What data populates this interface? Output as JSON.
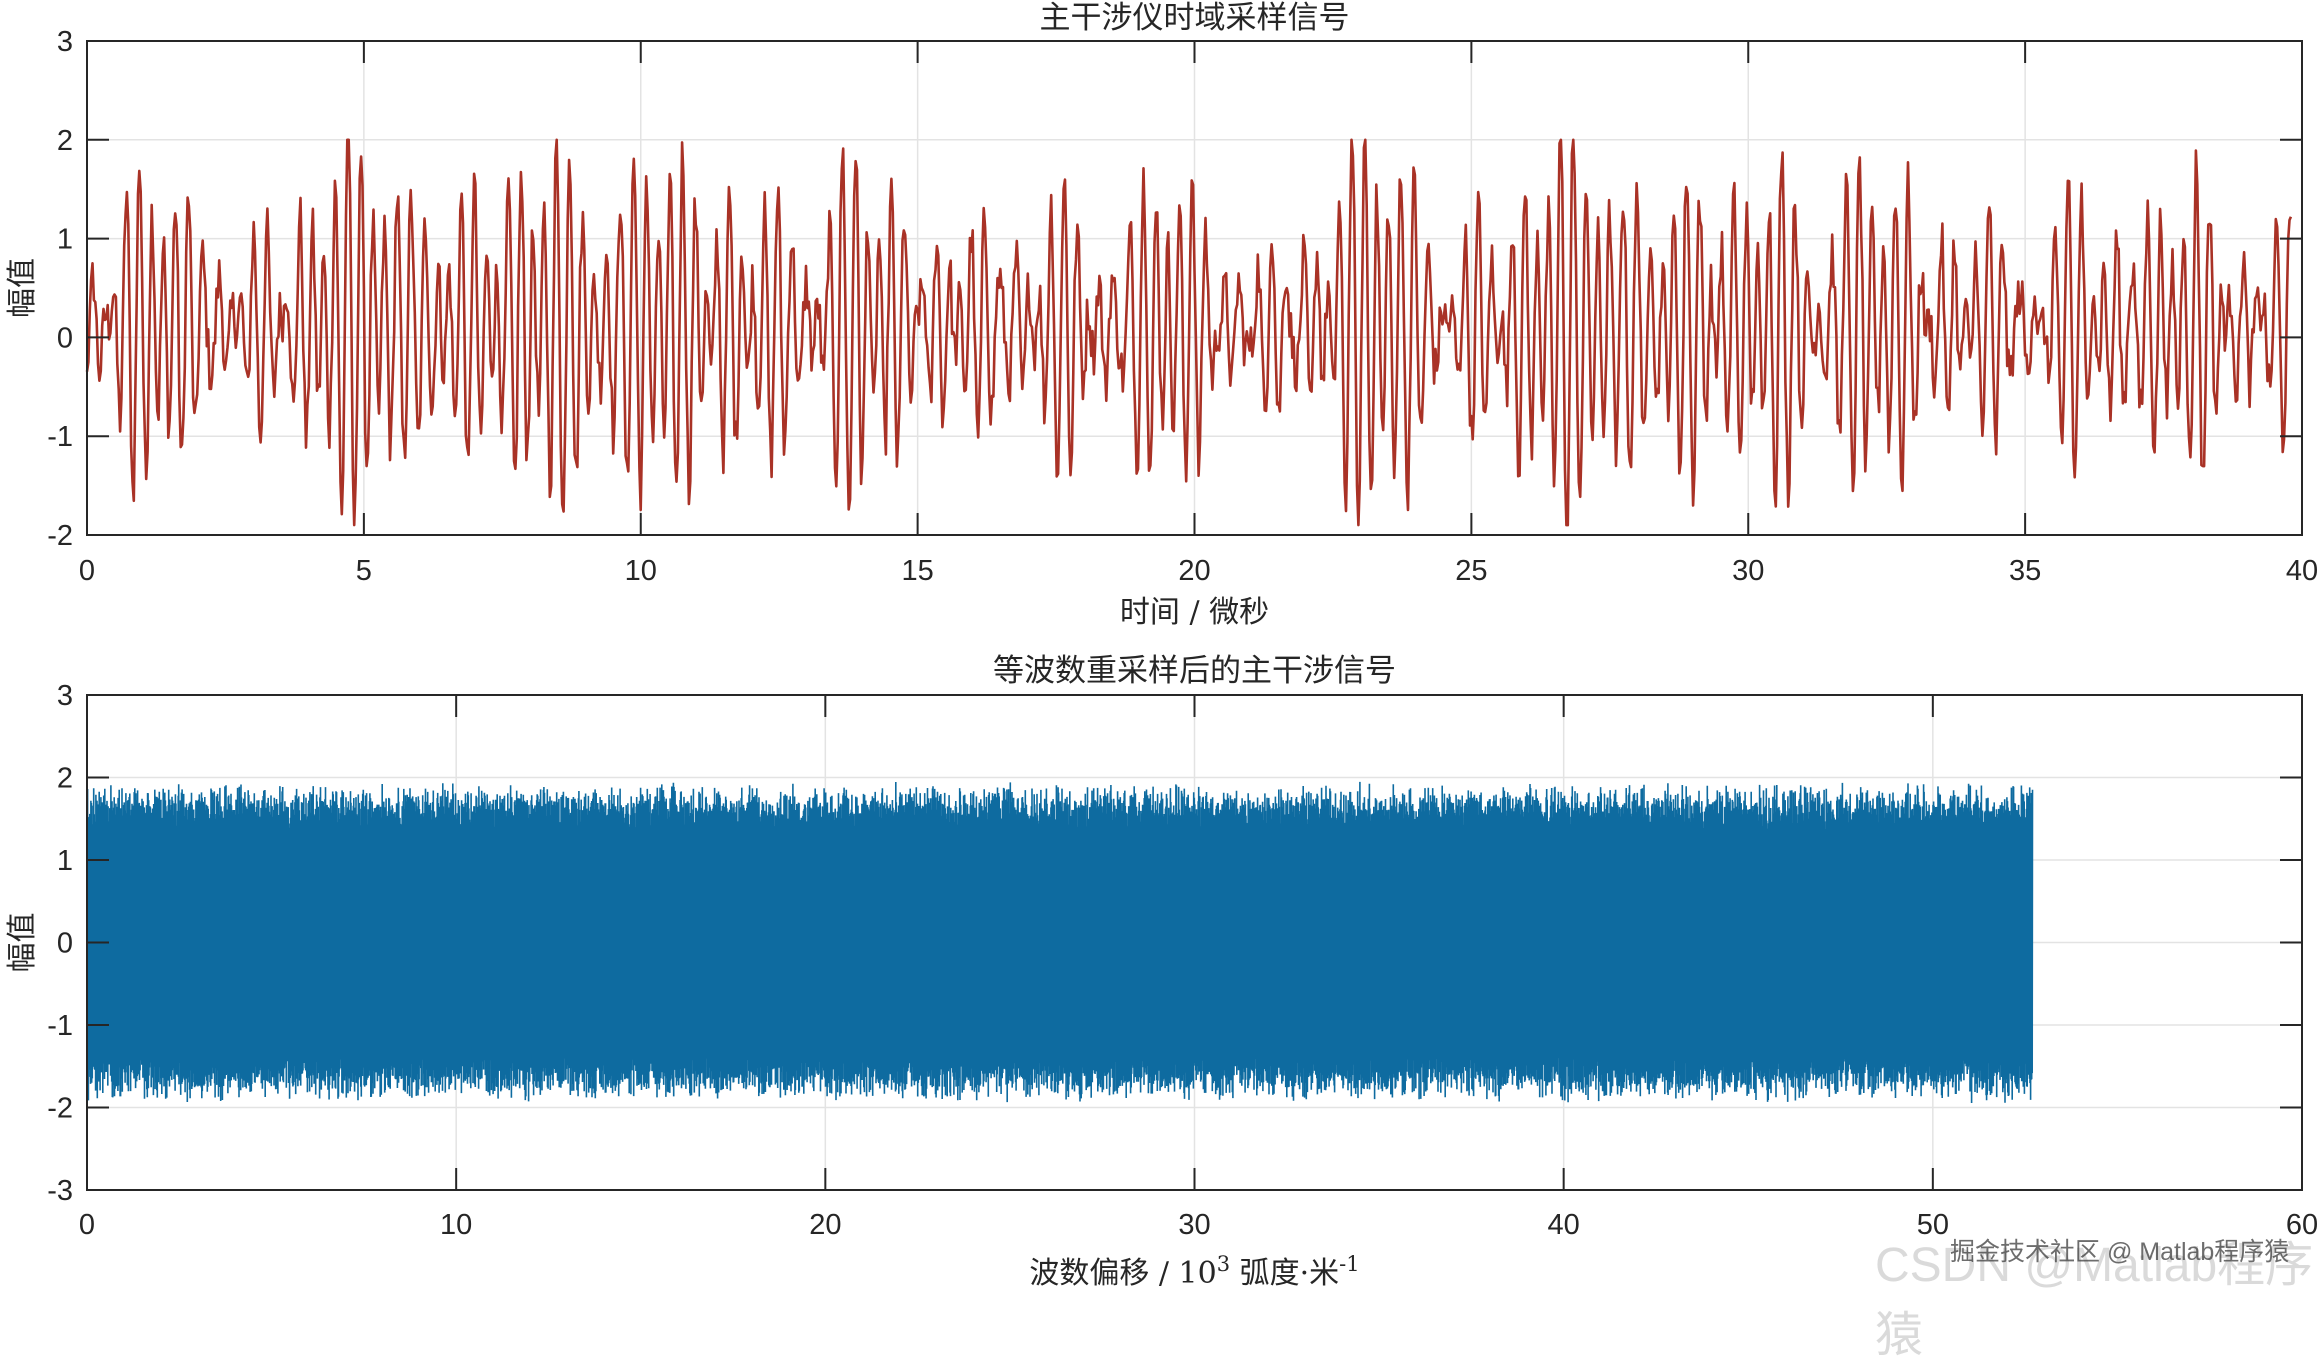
{
  "chart_data": [
    {
      "type": "line",
      "title": "主干涉仪时域采样信号",
      "xlabel": "时间 / 微秒",
      "ylabel": "幅值",
      "xlim": [
        0,
        40
      ],
      "ylim": [
        -2,
        3
      ],
      "xticks": [
        0,
        5,
        10,
        15,
        20,
        25,
        30,
        35,
        40
      ],
      "yticks": [
        -2,
        -1,
        0,
        1,
        2,
        3
      ],
      "grid": true,
      "color": "#A93226",
      "data_x_range": [
        0,
        39.8
      ],
      "data_y_range": [
        -1.9,
        2.0
      ]
    },
    {
      "type": "line",
      "title": "等波数重采样后的主干涉信号",
      "xlabel_parts": [
        "波数偏移 / 10",
        "3",
        " 弧度·米",
        "-1"
      ],
      "ylabel": "幅值",
      "xlim": [
        0,
        60
      ],
      "ylim": [
        -3,
        3
      ],
      "xticks": [
        0,
        10,
        20,
        30,
        40,
        50,
        60
      ],
      "yticks": [
        -3,
        -2,
        -1,
        0,
        1,
        2,
        3
      ],
      "grid": true,
      "color": "#0E6BA0",
      "data_x_range": [
        0,
        52.7
      ],
      "data_y_range": [
        -2.0,
        2.0
      ]
    }
  ],
  "watermark": {
    "back": "CSDN @Matlab程序猿",
    "front": "掘金技术社区 @ Matlab程序猿"
  }
}
